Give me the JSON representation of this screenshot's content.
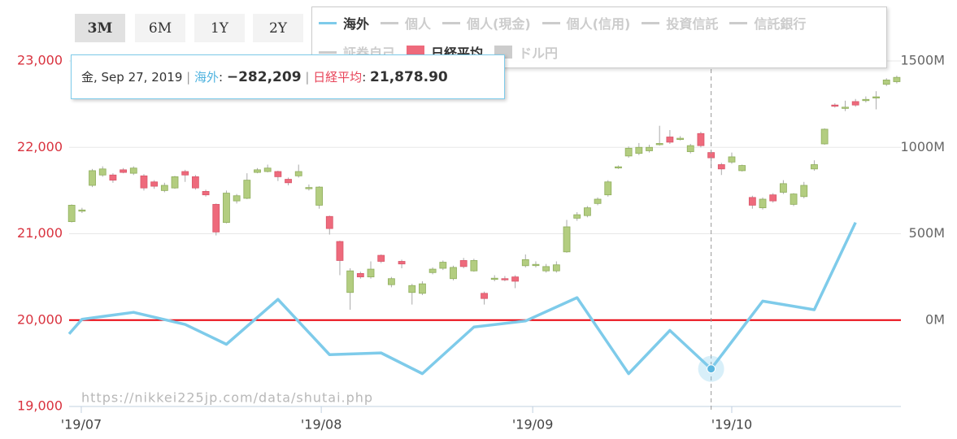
{
  "range_buttons": [
    {
      "label": "3M",
      "selected": true
    },
    {
      "label": "6M",
      "selected": false
    },
    {
      "label": "1Y",
      "selected": false
    },
    {
      "label": "2Y",
      "selected": false
    }
  ],
  "chart_data": {
    "type": "candlestick",
    "watermark": "https://nikkei225jp.com/data/shutai.php",
    "xlim": [
      -0.25,
      80.4
    ],
    "xticks": [
      {
        "value": 0.93,
        "label": "'19/07"
      },
      {
        "value": 24.2,
        "label": "'19/08"
      },
      {
        "value": 44.7,
        "label": "'19/09"
      },
      {
        "value": 64.0,
        "label": "'19/10"
      }
    ],
    "ylim": [
      19000,
      23000
    ],
    "yticks": [
      {
        "value": 19000,
        "label": "19,000"
      },
      {
        "value": 20000,
        "label": "20,000"
      },
      {
        "value": 21000,
        "label": "21,000"
      },
      {
        "value": 22000,
        "label": "22,000"
      },
      {
        "value": 23000,
        "label": "23,000"
      }
    ],
    "y_tick_color": "#d9333f",
    "y2lim": [
      -500,
      1500
    ],
    "y2ticks": [
      {
        "value": 0,
        "label": "0M"
      },
      {
        "value": 500,
        "label": "500M"
      },
      {
        "value": 1000,
        "label": "1000M"
      },
      {
        "value": 1500,
        "label": "1500M"
      }
    ],
    "reference_line": {
      "axis": "y2",
      "value": 0,
      "color": "#e8000b"
    },
    "grid": true,
    "series": [
      {
        "name": "日経平均",
        "type": "candlestick",
        "color": "#ee6a7c",
        "up_color": "#b3cd80",
        "open": [
          21140,
          21270,
          21560,
          21680,
          21680,
          21740,
          21700,
          21670,
          21600,
          21500,
          21530,
          21720,
          21660,
          21490,
          21340,
          21130,
          21380,
          21410,
          21710,
          21720,
          21720,
          21630,
          21670,
          21530,
          21330,
          21200,
          20910,
          20320,
          20540,
          20500,
          20750,
          20410,
          20680,
          20320,
          20310,
          20550,
          20600,
          20480,
          20690,
          20570,
          20310,
          20480,
          20480,
          20500,
          20630,
          20640,
          20570,
          20570,
          20790,
          21180,
          21210,
          21350,
          21450,
          21770,
          21900,
          21930,
          21960,
          22040,
          22120,
          22100,
          21950,
          22160,
          21940,
          21800,
          21830,
          21730,
          21420,
          21300,
          21450,
          21480,
          21340,
          21430,
          21750,
          22040,
          22490,
          22460,
          22530,
          22550,
          22580,
          22730,
          22760
        ],
        "high": [
          21340,
          21300,
          21750,
          21780,
          21700,
          21760,
          21780,
          21690,
          21620,
          21590,
          21670,
          21740,
          21680,
          21510,
          21350,
          21500,
          21460,
          21700,
          21760,
          21800,
          21730,
          21650,
          21800,
          21570,
          21550,
          21210,
          20920,
          20600,
          20560,
          20680,
          20760,
          20500,
          20700,
          20420,
          20450,
          20610,
          20690,
          20630,
          20720,
          20710,
          20330,
          20520,
          20510,
          20520,
          20760,
          20680,
          20650,
          20680,
          21160,
          21250,
          21320,
          21420,
          21620,
          21790,
          22010,
          22050,
          22030,
          22250,
          22200,
          22130,
          22040,
          22180,
          21960,
          21820,
          21940,
          21800,
          21440,
          21420,
          21470,
          21620,
          21470,
          21600,
          21850,
          22220,
          22510,
          22540,
          22560,
          22590,
          22650,
          22800,
          22830
        ],
        "low": [
          21130,
          21240,
          21540,
          21660,
          21590,
          21700,
          21680,
          21500,
          21520,
          21480,
          21520,
          21600,
          21510,
          21430,
          20980,
          21120,
          21350,
          21400,
          21700,
          21710,
          21610,
          21560,
          21650,
          21500,
          21290,
          20990,
          20520,
          20120,
          20480,
          20480,
          20660,
          20380,
          20600,
          20180,
          20290,
          20530,
          20580,
          20460,
          20600,
          20560,
          20180,
          20450,
          20450,
          20370,
          20610,
          20610,
          20550,
          20550,
          20780,
          21150,
          21190,
          21330,
          21430,
          21750,
          21880,
          21910,
          21940,
          22020,
          22040,
          22080,
          21930,
          22000,
          21760,
          21680,
          21810,
          21720,
          21290,
          21280,
          21360,
          21460,
          21320,
          21410,
          21730,
          22030,
          22460,
          22420,
          22470,
          22520,
          22440,
          22710,
          22740
        ],
        "close": [
          21330,
          21275,
          21730,
          21750,
          21620,
          21710,
          21760,
          21530,
          21550,
          21560,
          21660,
          21680,
          21530,
          21450,
          21020,
          21470,
          21440,
          21620,
          21740,
          21760,
          21660,
          21590,
          21720,
          21535,
          21540,
          21060,
          20690,
          20570,
          20500,
          20590,
          20680,
          20480,
          20650,
          20400,
          20420,
          20590,
          20670,
          20610,
          20620,
          20690,
          20250,
          20485,
          20475,
          20450,
          20700,
          20645,
          20620,
          20640,
          21080,
          21220,
          21300,
          21400,
          21600,
          21775,
          21990,
          22000,
          22000,
          22045,
          22060,
          22105,
          22020,
          22020,
          21878.9,
          21750,
          21890,
          21790,
          21330,
          21400,
          21380,
          21580,
          21460,
          21560,
          21800,
          22210,
          22480,
          22465,
          22490,
          22555,
          22585,
          22780,
          22810
        ]
      },
      {
        "name": "海外",
        "type": "line",
        "axis": "y2",
        "color": "#7ecbea",
        "x": [
          -0.25,
          1,
          6,
          11,
          15,
          20,
          25,
          30,
          34,
          39,
          44,
          49,
          54,
          58,
          62,
          67,
          72,
          76
        ],
        "values": [
          -80,
          5,
          45,
          -25,
          -140,
          120,
          -200,
          -190,
          -310,
          -40,
          -5,
          130,
          -310,
          -60,
          -282.209,
          110,
          60,
          565
        ]
      }
    ],
    "inactive_series": [
      {
        "name": "個人",
        "marker": "line",
        "color": "#cccccc"
      },
      {
        "name": "個人(現金)",
        "marker": "line",
        "color": "#cccccc"
      },
      {
        "name": "個人(信用)",
        "marker": "line",
        "color": "#cccccc"
      },
      {
        "name": "投資信託",
        "marker": "line",
        "color": "#cccccc"
      },
      {
        "name": "信託銀行",
        "marker": "line",
        "color": "#cccccc"
      },
      {
        "name": "証券自己",
        "marker": "line",
        "color": "#cccccc"
      },
      {
        "name": "ドル円",
        "marker": "box",
        "color": "#cccccc"
      }
    ],
    "highlight": {
      "series": 1,
      "point": 14,
      "candle": 62
    },
    "tooltip": {
      "date": "金, Sep 27, 2019",
      "separator": "|",
      "colon": ":",
      "line_value": "−282,209",
      "price_value": "21,878.90"
    }
  }
}
